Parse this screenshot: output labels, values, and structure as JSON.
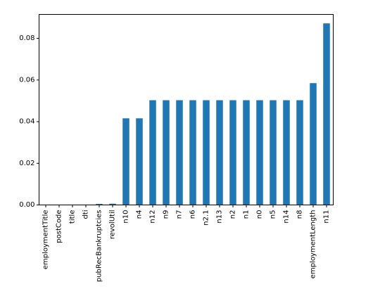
{
  "chart_data": {
    "type": "bar",
    "title": "",
    "xlabel": "",
    "ylabel": "",
    "categories": [
      "employmentTitle",
      "postCode",
      "title",
      "dti",
      "pubRecBankruptcies",
      "revolUtil",
      "n10",
      "n4",
      "n12",
      "n9",
      "n7",
      "n6",
      "n2.1",
      "n13",
      "n2",
      "n1",
      "n0",
      "n5",
      "n14",
      "n8",
      "employmentLength",
      "n11"
    ],
    "values": [
      1e-05,
      1e-06,
      1e-06,
      1e-05,
      0.0005,
      0.0006,
      0.0416,
      0.0416,
      0.0503,
      0.0503,
      0.0503,
      0.0503,
      0.0503,
      0.0503,
      0.0503,
      0.0503,
      0.0503,
      0.0503,
      0.0503,
      0.0503,
      0.0585,
      0.0872
    ],
    "ylim": [
      0,
      0.0915
    ],
    "yticks": [
      "0.00",
      "0.02",
      "0.04",
      "0.06",
      "0.08"
    ],
    "bar_color": "#1f77b4",
    "grid": false,
    "legend": "none"
  }
}
